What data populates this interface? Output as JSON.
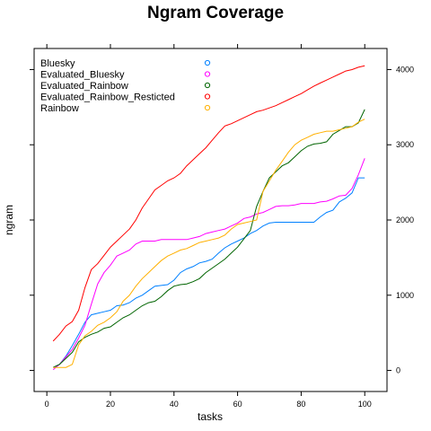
{
  "chart_data": {
    "type": "line",
    "title": "Ngram Coverage",
    "xlabel": "tasks",
    "ylabel": "ngram",
    "xlim": [
      -4,
      107
    ],
    "ylim": [
      -280,
      4280
    ],
    "x_ticks": [
      0,
      20,
      40,
      60,
      80,
      100
    ],
    "y_ticks_right": [
      0,
      1000,
      2000,
      3000,
      4000
    ],
    "grid": false,
    "legend": "top-left",
    "series": [
      {
        "name": "Bluesky",
        "color": "#0080ff",
        "points": [
          [
            2,
            40
          ],
          [
            4,
            80
          ],
          [
            6,
            190
          ],
          [
            8,
            330
          ],
          [
            10,
            480
          ],
          [
            12,
            640
          ],
          [
            14,
            740
          ],
          [
            16,
            760
          ],
          [
            18,
            780
          ],
          [
            20,
            800
          ],
          [
            22,
            860
          ],
          [
            24,
            870
          ],
          [
            26,
            900
          ],
          [
            28,
            960
          ],
          [
            30,
            1000
          ],
          [
            32,
            1060
          ],
          [
            34,
            1120
          ],
          [
            36,
            1130
          ],
          [
            38,
            1140
          ],
          [
            40,
            1200
          ],
          [
            42,
            1300
          ],
          [
            44,
            1350
          ],
          [
            46,
            1380
          ],
          [
            48,
            1430
          ],
          [
            50,
            1450
          ],
          [
            52,
            1480
          ],
          [
            54,
            1560
          ],
          [
            56,
            1630
          ],
          [
            58,
            1680
          ],
          [
            60,
            1720
          ],
          [
            62,
            1760
          ],
          [
            64,
            1820
          ],
          [
            66,
            1860
          ],
          [
            68,
            1920
          ],
          [
            70,
            1960
          ],
          [
            72,
            1970
          ],
          [
            74,
            1970
          ],
          [
            76,
            1970
          ],
          [
            78,
            1970
          ],
          [
            80,
            1970
          ],
          [
            82,
            1970
          ],
          [
            84,
            1970
          ],
          [
            86,
            2040
          ],
          [
            88,
            2100
          ],
          [
            90,
            2130
          ],
          [
            92,
            2240
          ],
          [
            94,
            2290
          ],
          [
            96,
            2360
          ],
          [
            98,
            2560
          ],
          [
            100,
            2560
          ]
        ]
      },
      {
        "name": "Evaluated_Bluesky",
        "color": "#ff00ff",
        "points": [
          [
            2,
            10
          ],
          [
            4,
            80
          ],
          [
            6,
            180
          ],
          [
            8,
            280
          ],
          [
            10,
            430
          ],
          [
            12,
            600
          ],
          [
            14,
            880
          ],
          [
            16,
            1150
          ],
          [
            18,
            1300
          ],
          [
            20,
            1400
          ],
          [
            22,
            1520
          ],
          [
            24,
            1560
          ],
          [
            26,
            1600
          ],
          [
            28,
            1680
          ],
          [
            30,
            1720
          ],
          [
            32,
            1720
          ],
          [
            34,
            1720
          ],
          [
            36,
            1740
          ],
          [
            38,
            1740
          ],
          [
            40,
            1740
          ],
          [
            42,
            1740
          ],
          [
            44,
            1740
          ],
          [
            46,
            1760
          ],
          [
            48,
            1780
          ],
          [
            50,
            1820
          ],
          [
            52,
            1840
          ],
          [
            54,
            1860
          ],
          [
            56,
            1880
          ],
          [
            58,
            1920
          ],
          [
            60,
            1960
          ],
          [
            62,
            2020
          ],
          [
            64,
            2040
          ],
          [
            66,
            2080
          ],
          [
            68,
            2100
          ],
          [
            70,
            2140
          ],
          [
            72,
            2180
          ],
          [
            74,
            2190
          ],
          [
            76,
            2190
          ],
          [
            78,
            2200
          ],
          [
            80,
            2220
          ],
          [
            82,
            2220
          ],
          [
            84,
            2220
          ],
          [
            86,
            2240
          ],
          [
            88,
            2250
          ],
          [
            90,
            2280
          ],
          [
            92,
            2320
          ],
          [
            94,
            2330
          ],
          [
            96,
            2420
          ],
          [
            98,
            2600
          ],
          [
            100,
            2820
          ]
        ]
      },
      {
        "name": "Evaluated_Rainbow",
        "color": "#006400",
        "points": [
          [
            2,
            40
          ],
          [
            4,
            80
          ],
          [
            6,
            160
          ],
          [
            8,
            240
          ],
          [
            10,
            380
          ],
          [
            12,
            440
          ],
          [
            14,
            480
          ],
          [
            16,
            510
          ],
          [
            18,
            560
          ],
          [
            20,
            580
          ],
          [
            22,
            640
          ],
          [
            24,
            700
          ],
          [
            26,
            740
          ],
          [
            28,
            800
          ],
          [
            30,
            860
          ],
          [
            32,
            900
          ],
          [
            34,
            920
          ],
          [
            36,
            980
          ],
          [
            38,
            1060
          ],
          [
            40,
            1120
          ],
          [
            42,
            1140
          ],
          [
            44,
            1150
          ],
          [
            46,
            1180
          ],
          [
            48,
            1220
          ],
          [
            50,
            1300
          ],
          [
            52,
            1360
          ],
          [
            54,
            1420
          ],
          [
            56,
            1480
          ],
          [
            58,
            1560
          ],
          [
            60,
            1640
          ],
          [
            62,
            1750
          ],
          [
            64,
            1860
          ],
          [
            66,
            2180
          ],
          [
            68,
            2380
          ],
          [
            70,
            2560
          ],
          [
            72,
            2640
          ],
          [
            74,
            2720
          ],
          [
            76,
            2760
          ],
          [
            78,
            2840
          ],
          [
            80,
            2920
          ],
          [
            82,
            2980
          ],
          [
            84,
            3010
          ],
          [
            86,
            3020
          ],
          [
            88,
            3040
          ],
          [
            90,
            3140
          ],
          [
            92,
            3190
          ],
          [
            94,
            3240
          ],
          [
            96,
            3240
          ],
          [
            98,
            3290
          ],
          [
            100,
            3470
          ]
        ]
      },
      {
        "name": "Evaluated_Rainbow_Resticted",
        "color": "#ff0000",
        "points": [
          [
            2,
            390
          ],
          [
            4,
            480
          ],
          [
            6,
            590
          ],
          [
            8,
            650
          ],
          [
            10,
            800
          ],
          [
            12,
            1100
          ],
          [
            14,
            1340
          ],
          [
            16,
            1420
          ],
          [
            18,
            1530
          ],
          [
            20,
            1640
          ],
          [
            22,
            1720
          ],
          [
            24,
            1800
          ],
          [
            26,
            1880
          ],
          [
            28,
            2000
          ],
          [
            30,
            2160
          ],
          [
            32,
            2280
          ],
          [
            34,
            2400
          ],
          [
            36,
            2460
          ],
          [
            38,
            2520
          ],
          [
            40,
            2560
          ],
          [
            42,
            2620
          ],
          [
            44,
            2720
          ],
          [
            46,
            2800
          ],
          [
            48,
            2880
          ],
          [
            50,
            2960
          ],
          [
            52,
            3060
          ],
          [
            54,
            3160
          ],
          [
            56,
            3250
          ],
          [
            58,
            3280
          ],
          [
            60,
            3320
          ],
          [
            62,
            3360
          ],
          [
            64,
            3400
          ],
          [
            66,
            3440
          ],
          [
            68,
            3460
          ],
          [
            70,
            3490
          ],
          [
            72,
            3520
          ],
          [
            74,
            3560
          ],
          [
            76,
            3600
          ],
          [
            78,
            3640
          ],
          [
            80,
            3680
          ],
          [
            82,
            3730
          ],
          [
            84,
            3780
          ],
          [
            86,
            3820
          ],
          [
            88,
            3860
          ],
          [
            90,
            3900
          ],
          [
            92,
            3940
          ],
          [
            94,
            3980
          ],
          [
            96,
            4000
          ],
          [
            98,
            4030
          ],
          [
            100,
            4050
          ]
        ]
      },
      {
        "name": "Rainbow",
        "color": "#ffb000",
        "points": [
          [
            2,
            40
          ],
          [
            4,
            40
          ],
          [
            6,
            40
          ],
          [
            8,
            80
          ],
          [
            10,
            340
          ],
          [
            12,
            460
          ],
          [
            14,
            520
          ],
          [
            16,
            600
          ],
          [
            18,
            640
          ],
          [
            20,
            700
          ],
          [
            22,
            780
          ],
          [
            24,
            920
          ],
          [
            26,
            1000
          ],
          [
            28,
            1120
          ],
          [
            30,
            1220
          ],
          [
            32,
            1300
          ],
          [
            34,
            1380
          ],
          [
            36,
            1460
          ],
          [
            38,
            1520
          ],
          [
            40,
            1560
          ],
          [
            42,
            1600
          ],
          [
            44,
            1620
          ],
          [
            46,
            1660
          ],
          [
            48,
            1700
          ],
          [
            50,
            1720
          ],
          [
            52,
            1740
          ],
          [
            54,
            1760
          ],
          [
            56,
            1800
          ],
          [
            58,
            1880
          ],
          [
            60,
            1940
          ],
          [
            62,
            1960
          ],
          [
            64,
            1980
          ],
          [
            66,
            2000
          ],
          [
            68,
            2380
          ],
          [
            70,
            2520
          ],
          [
            72,
            2660
          ],
          [
            74,
            2780
          ],
          [
            76,
            2900
          ],
          [
            78,
            3000
          ],
          [
            80,
            3060
          ],
          [
            82,
            3100
          ],
          [
            84,
            3140
          ],
          [
            86,
            3160
          ],
          [
            88,
            3180
          ],
          [
            90,
            3180
          ],
          [
            92,
            3200
          ],
          [
            94,
            3220
          ],
          [
            96,
            3240
          ],
          [
            98,
            3300
          ],
          [
            100,
            3340
          ]
        ]
      }
    ]
  }
}
